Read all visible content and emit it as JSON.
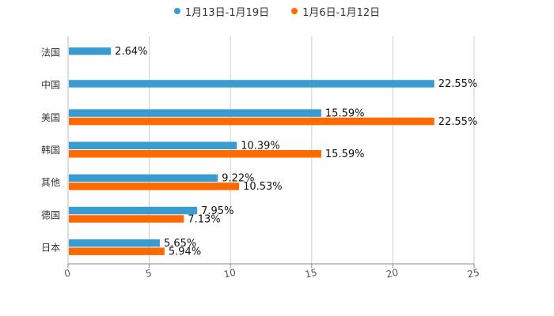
{
  "chart_data": {
    "type": "bar",
    "orientation": "horizontal",
    "title": "",
    "categories": [
      "法国",
      "中国",
      "美国",
      "韩国",
      "其他",
      "德国",
      "日本"
    ],
    "series": [
      {
        "name": "1月13日-1月19日",
        "color": "#3a9bd0",
        "values": [
          2.64,
          22.55,
          15.59,
          10.39,
          9.22,
          7.95,
          5.65
        ],
        "labels": [
          "2.64%",
          "22.55%",
          "15.59%",
          "10.39%",
          "9.22%",
          "7.95%",
          "5.65%"
        ]
      },
      {
        "name": "1月6日-1月12日",
        "color": "#ff6a00",
        "values": [
          null,
          null,
          22.55,
          15.59,
          10.53,
          7.13,
          5.94
        ],
        "labels": [
          "",
          "",
          "22.55%",
          "15.59%",
          "10.53%",
          "7.13%",
          "5.94%"
        ]
      }
    ],
    "xlim": [
      0,
      25
    ],
    "xticks": [
      0,
      5,
      10,
      15,
      20,
      25
    ],
    "xtick_labels": [
      "0",
      "5",
      "10",
      "15",
      "20",
      "25"
    ],
    "grid": true,
    "legend_position": "top-center",
    "xlabel": "",
    "ylabel": ""
  }
}
